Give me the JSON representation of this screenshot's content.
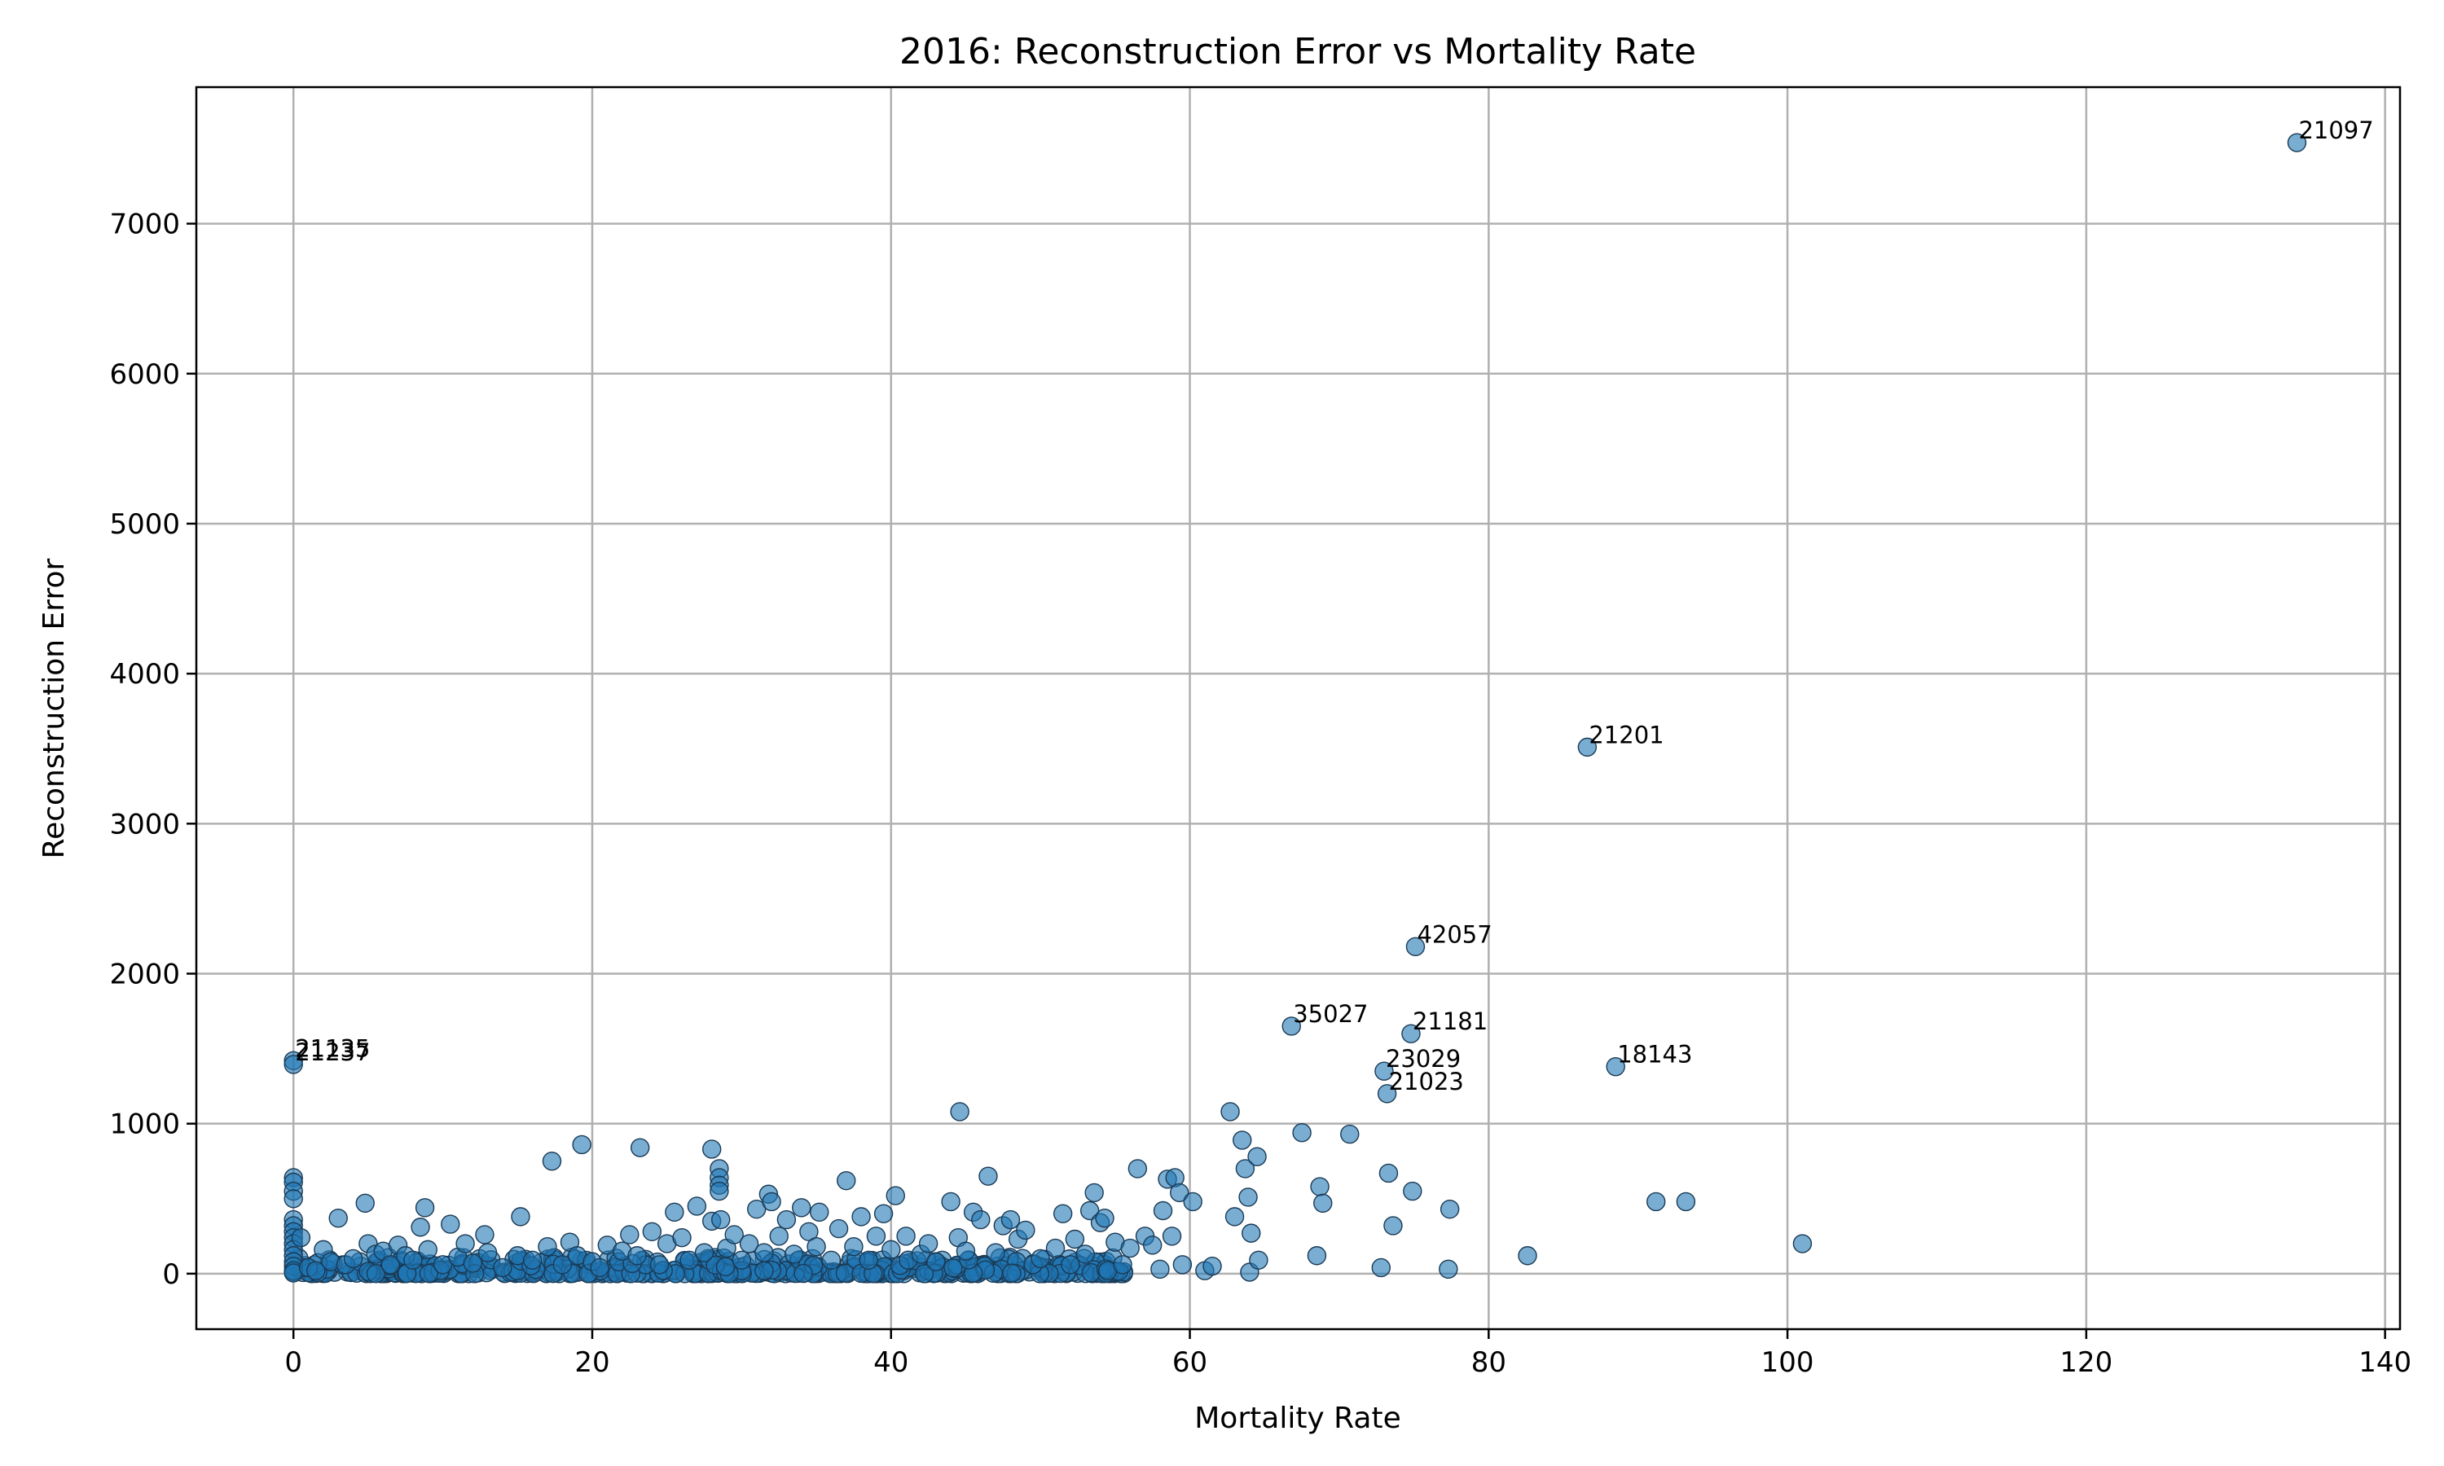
{
  "chart_data": {
    "type": "scatter",
    "title": "2016: Reconstruction Error vs Mortality Rate",
    "xlabel": "Mortality Rate",
    "ylabel": "Reconstruction Error",
    "xlim": [
      -6.5,
      141
    ],
    "ylim": [
      -370,
      7910
    ],
    "xticks": [
      0,
      20,
      40,
      60,
      80,
      100,
      120,
      140
    ],
    "yticks": [
      0,
      1000,
      2000,
      3000,
      4000,
      5000,
      6000,
      7000
    ],
    "xtick_labels": [
      "0",
      "20",
      "40",
      "60",
      "80",
      "100",
      "120",
      "140"
    ],
    "ytick_labels": [
      "0",
      "1000",
      "2000",
      "3000",
      "4000",
      "5000",
      "6000",
      "7000"
    ],
    "grid": true,
    "point_color": "#1f77b4",
    "labeled_points": [
      {
        "label": "21097",
        "x": 134.1,
        "y": 7540
      },
      {
        "label": "21201",
        "x": 86.6,
        "y": 3510
      },
      {
        "label": "42057",
        "x": 75.1,
        "y": 2180
      },
      {
        "label": "35027",
        "x": 66.8,
        "y": 1650
      },
      {
        "label": "21181",
        "x": 74.8,
        "y": 1600
      },
      {
        "label": "18143",
        "x": 88.5,
        "y": 1380
      },
      {
        "label": "23029",
        "x": 73.0,
        "y": 1350
      },
      {
        "label": "21023",
        "x": 73.2,
        "y": 1200
      },
      {
        "label": "21135",
        "x": 0.0,
        "y": 1420
      },
      {
        "label": "21237",
        "x": 0.0,
        "y": 1395
      }
    ],
    "points": [
      [
        0,
        640
      ],
      [
        0,
        610
      ],
      [
        0,
        550
      ],
      [
        0,
        500
      ],
      [
        0,
        360
      ],
      [
        0,
        320
      ],
      [
        0,
        280
      ],
      [
        0,
        240
      ],
      [
        0,
        200
      ],
      [
        0,
        160
      ],
      [
        0,
        120
      ],
      [
        0,
        80
      ],
      [
        0,
        50
      ],
      [
        0,
        20
      ],
      [
        0,
        5
      ],
      [
        0.5,
        240
      ],
      [
        1,
        40
      ],
      [
        1.5,
        20
      ],
      [
        2,
        160
      ],
      [
        2.5,
        80
      ],
      [
        3,
        370
      ],
      [
        3.5,
        60
      ],
      [
        4,
        100
      ],
      [
        4.8,
        470
      ],
      [
        5,
        200
      ],
      [
        5.5,
        130
      ],
      [
        6,
        150
      ],
      [
        6.5,
        60
      ],
      [
        7,
        190
      ],
      [
        7.5,
        120
      ],
      [
        8,
        90
      ],
      [
        8.5,
        310
      ],
      [
        8.8,
        440
      ],
      [
        9,
        160
      ],
      [
        10,
        60
      ],
      [
        10.5,
        330
      ],
      [
        11,
        110
      ],
      [
        11.5,
        200
      ],
      [
        12,
        70
      ],
      [
        12.8,
        260
      ],
      [
        13,
        140
      ],
      [
        14,
        40
      ],
      [
        15,
        120
      ],
      [
        15.2,
        380
      ],
      [
        16,
        90
      ],
      [
        17,
        180
      ],
      [
        17.3,
        750
      ],
      [
        18,
        60
      ],
      [
        18.5,
        210
      ],
      [
        19,
        120
      ],
      [
        19.3,
        860
      ],
      [
        20,
        80
      ],
      [
        20.5,
        40
      ],
      [
        21,
        190
      ],
      [
        22,
        150
      ],
      [
        22.5,
        260
      ],
      [
        23,
        120
      ],
      [
        23.2,
        840
      ],
      [
        24,
        280
      ],
      [
        24.5,
        60
      ],
      [
        25,
        200
      ],
      [
        25.5,
        410
      ],
      [
        26,
        240
      ],
      [
        26.5,
        90
      ],
      [
        27,
        450
      ],
      [
        27.5,
        140
      ],
      [
        28,
        830
      ],
      [
        28,
        350
      ],
      [
        28.5,
        700
      ],
      [
        28.5,
        640
      ],
      [
        28.5,
        590
      ],
      [
        28.5,
        550
      ],
      [
        28.6,
        360
      ],
      [
        29,
        170
      ],
      [
        29.5,
        260
      ],
      [
        30,
        90
      ],
      [
        30.5,
        200
      ],
      [
        31,
        430
      ],
      [
        31.5,
        140
      ],
      [
        31.8,
        530
      ],
      [
        32,
        480
      ],
      [
        32.5,
        250
      ],
      [
        33,
        360
      ],
      [
        33.5,
        130
      ],
      [
        34,
        440
      ],
      [
        34.5,
        280
      ],
      [
        35,
        180
      ],
      [
        35.2,
        410
      ],
      [
        36,
        90
      ],
      [
        36.5,
        300
      ],
      [
        37,
        620
      ],
      [
        37.5,
        180
      ],
      [
        38,
        380
      ],
      [
        38.5,
        90
      ],
      [
        39,
        250
      ],
      [
        39.5,
        400
      ],
      [
        40,
        160
      ],
      [
        40.3,
        520
      ],
      [
        41,
        250
      ],
      [
        42,
        130
      ],
      [
        42.5,
        200
      ],
      [
        43,
        80
      ],
      [
        44,
        480
      ],
      [
        44.5,
        240
      ],
      [
        44.6,
        1080
      ],
      [
        45,
        150
      ],
      [
        45.5,
        410
      ],
      [
        46,
        360
      ],
      [
        46.5,
        650
      ],
      [
        47,
        140
      ],
      [
        47.5,
        320
      ],
      [
        48,
        360
      ],
      [
        48.5,
        230
      ],
      [
        49,
        290
      ],
      [
        49.5,
        60
      ],
      [
        50,
        100
      ],
      [
        51,
        170
      ],
      [
        51.5,
        400
      ],
      [
        52,
        60
      ],
      [
        52.3,
        230
      ],
      [
        53,
        130
      ],
      [
        53.3,
        420
      ],
      [
        53.6,
        540
      ],
      [
        54,
        340
      ],
      [
        54.3,
        370
      ],
      [
        54.5,
        20
      ],
      [
        55,
        210
      ],
      [
        55.5,
        60
      ],
      [
        56,
        170
      ],
      [
        56.5,
        700
      ],
      [
        57,
        250
      ],
      [
        57.5,
        190
      ],
      [
        58,
        30
      ],
      [
        58.2,
        420
      ],
      [
        58.5,
        630
      ],
      [
        58.8,
        250
      ],
      [
        59,
        640
      ],
      [
        59.3,
        540
      ],
      [
        59.5,
        60
      ],
      [
        60.2,
        480
      ],
      [
        61,
        20
      ],
      [
        61.5,
        50
      ],
      [
        62.7,
        1080
      ],
      [
        63,
        380
      ],
      [
        63.5,
        890
      ],
      [
        63.7,
        700
      ],
      [
        63.9,
        510
      ],
      [
        64,
        10
      ],
      [
        64.1,
        270
      ],
      [
        64.5,
        780
      ],
      [
        64.6,
        90
      ],
      [
        67.5,
        940
      ],
      [
        68.5,
        120
      ],
      [
        68.7,
        580
      ],
      [
        68.9,
        470
      ],
      [
        70.7,
        930
      ],
      [
        72.8,
        40
      ],
      [
        73.3,
        670
      ],
      [
        73.6,
        320
      ],
      [
        74.9,
        550
      ],
      [
        77.3,
        30
      ],
      [
        77.4,
        430
      ],
      [
        82.6,
        120
      ],
      [
        91.2,
        480
      ],
      [
        93.2,
        480
      ],
      [
        101,
        200
      ]
    ]
  }
}
